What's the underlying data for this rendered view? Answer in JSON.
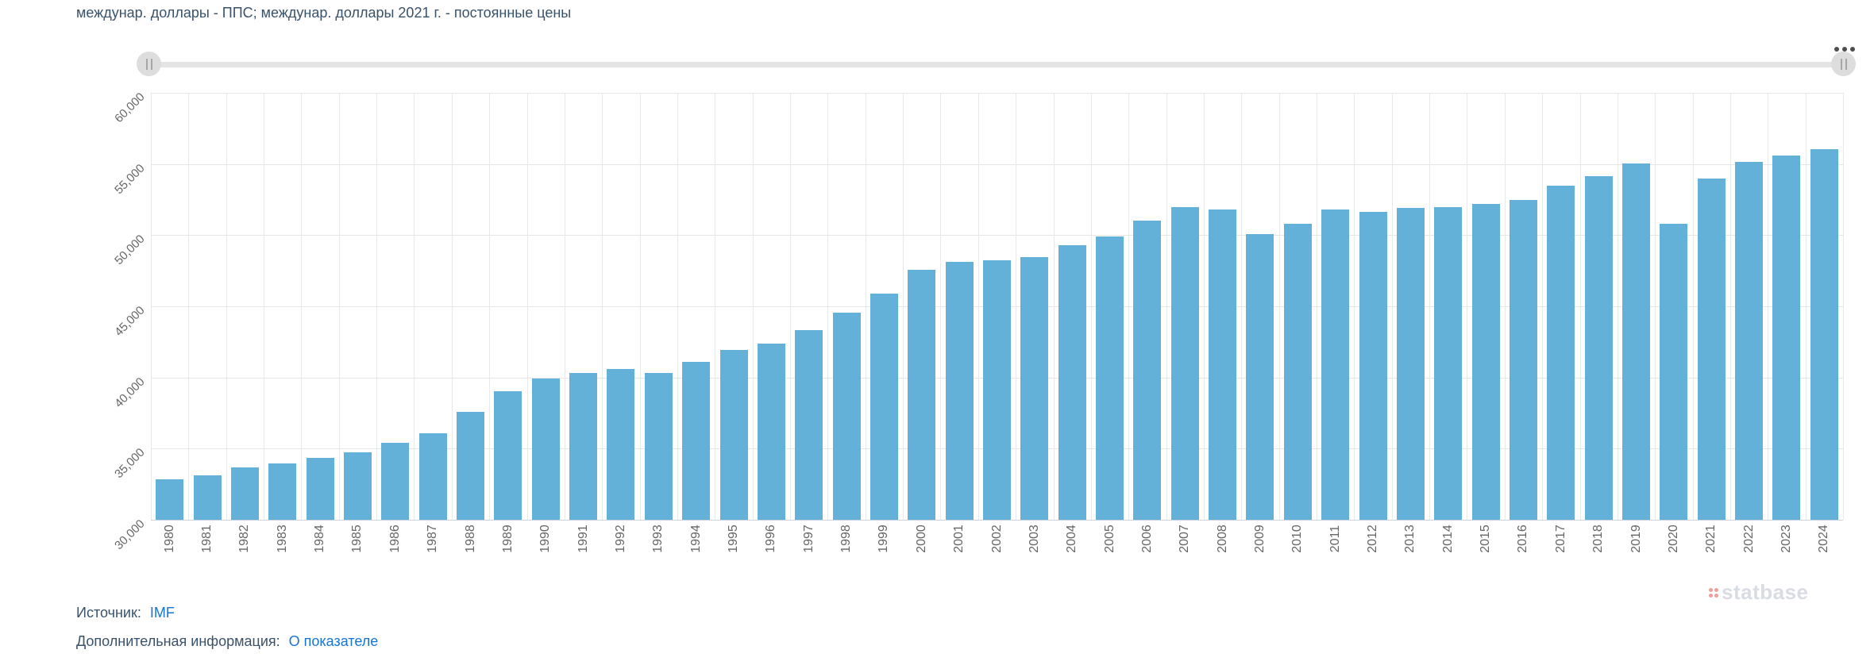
{
  "header": {
    "title": "междунар. доллары - ППС; междунар. доллары 2021 г. - постоянные цены"
  },
  "toolbar": {
    "context_menu_icon": "ellipsis-icon"
  },
  "slider": {
    "left_handle_icon": "drag-handle-icon",
    "right_handle_icon": "drag-handle-icon"
  },
  "chart_data": {
    "type": "bar",
    "title": "междунар. доллары - ППС; междунар. доллары 2021 г. - постоянные цены",
    "xlabel": "",
    "ylabel": "",
    "legend": "none",
    "grid": true,
    "ylim": [
      30000,
      60000
    ],
    "ytick_step": 5000,
    "yticks": [
      {
        "value": 30000,
        "label": "30,000"
      },
      {
        "value": 35000,
        "label": "35,000"
      },
      {
        "value": 40000,
        "label": "40,000"
      },
      {
        "value": 45000,
        "label": "45,000"
      },
      {
        "value": 50000,
        "label": "50,000"
      },
      {
        "value": 55000,
        "label": "55,000"
      },
      {
        "value": 60000,
        "label": "60,000"
      }
    ],
    "categories": [
      "1980",
      "1981",
      "1982",
      "1983",
      "1984",
      "1985",
      "1986",
      "1987",
      "1988",
      "1989",
      "1990",
      "1991",
      "1992",
      "1993",
      "1994",
      "1995",
      "1996",
      "1997",
      "1998",
      "1999",
      "2000",
      "2001",
      "2002",
      "2003",
      "2004",
      "2005",
      "2006",
      "2007",
      "2008",
      "2009",
      "2010",
      "2011",
      "2012",
      "2013",
      "2014",
      "2015",
      "2016",
      "2017",
      "2018",
      "2019",
      "2020",
      "2021",
      "2022",
      "2023",
      "2024"
    ],
    "values": [
      32850,
      33100,
      33700,
      33950,
      34350,
      34750,
      35400,
      36100,
      37600,
      39050,
      39950,
      40300,
      40600,
      40300,
      41100,
      41950,
      42400,
      43300,
      44550,
      45900,
      47550,
      48100,
      48250,
      48450,
      49300,
      49900,
      51000,
      51950,
      51800,
      50100,
      50800,
      51800,
      51650,
      51900,
      51950,
      52200,
      52450,
      53500,
      54150,
      55050,
      50800,
      54000,
      55150,
      55600,
      56050
    ],
    "bar_color": "#63b1d8"
  },
  "watermark": {
    "logo_icon": "dots-grid-icon",
    "text": "statbase"
  },
  "footer": {
    "source_label": "Источник:",
    "source_link": "IMF",
    "info_label": "Дополнительная информация:",
    "info_link": "О показателе"
  },
  "colors": {
    "bar": "#63b1d8",
    "gridline": "#e6e6e6",
    "axis_line": "#ccd2da",
    "tick_text": "#666666",
    "heading_text": "#3a5269",
    "link": "#1875d1",
    "slider_track": "#e4e4e4",
    "slider_handle": "#dddddd",
    "watermark_text": "#d9dbe5",
    "watermark_dots": "#f0a09a"
  }
}
